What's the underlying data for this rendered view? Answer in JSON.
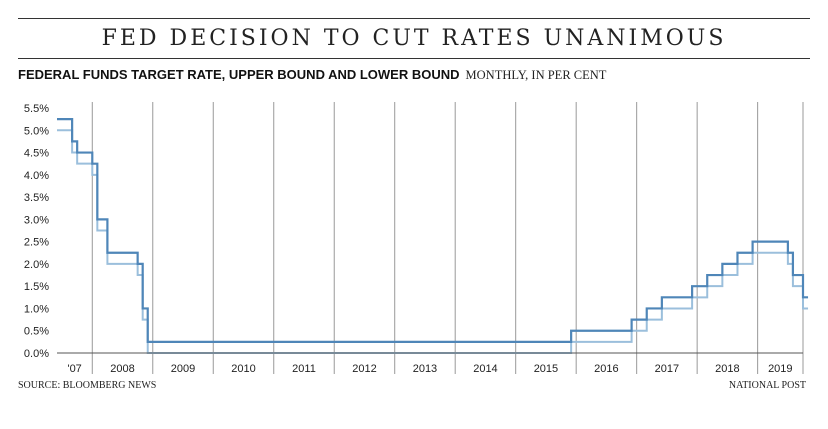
{
  "header": {
    "title": "FED DECISION TO CUT RATES UNANIMOUS",
    "subtitle": "FEDERAL FUNDS TARGET RATE, UPPER BOUND AND LOWER BOUND",
    "unit_note": "MONTHLY, IN PER CENT"
  },
  "footer": {
    "source": "SOURCE: BLOOMBERG NEWS",
    "credit": "NATIONAL POST"
  },
  "colors": {
    "upper": "#4f86b8",
    "lower": "#9bbfdc",
    "grid": "#999999",
    "axis": "#555555"
  },
  "chart_data": {
    "type": "line",
    "title": "",
    "xlabel": "",
    "ylabel": "",
    "ylim": [
      0,
      5.5
    ],
    "yticks": [
      "0.0%",
      "0.5%",
      "1.0%",
      "1.5%",
      "2.0%",
      "2.5%",
      "3.0%",
      "3.5%",
      "4.0%",
      "4.5%",
      "5.0%",
      "5.5%"
    ],
    "xlim": [
      "2007-06",
      "2019-10"
    ],
    "year_labels": [
      {
        "label": "'07",
        "year": 2007
      },
      {
        "label": "2008",
        "year": 2008
      },
      {
        "label": "2009",
        "year": 2009
      },
      {
        "label": "2010",
        "year": 2010
      },
      {
        "label": "2011",
        "year": 2011
      },
      {
        "label": "2012",
        "year": 2012
      },
      {
        "label": "2013",
        "year": 2013
      },
      {
        "label": "2014",
        "year": 2014
      },
      {
        "label": "2015",
        "year": 2015
      },
      {
        "label": "2016",
        "year": 2016
      },
      {
        "label": "2017",
        "year": 2017
      },
      {
        "label": "2018",
        "year": 2018
      },
      {
        "label": "2019",
        "year": 2019
      }
    ],
    "series": [
      {
        "key": "upper",
        "x": [
          "2007-06",
          "2007-08",
          "2007-09",
          "2007-10",
          "2007-12",
          "2008-01",
          "2008-02",
          "2008-03",
          "2008-04",
          "2008-10",
          "2008-11",
          "2008-12",
          "2015-11",
          "2015-12",
          "2016-11",
          "2016-12",
          "2017-02",
          "2017-03",
          "2017-05",
          "2017-06",
          "2017-11",
          "2017-12",
          "2018-02",
          "2018-03",
          "2018-05",
          "2018-06",
          "2018-08",
          "2018-09",
          "2018-11",
          "2018-12",
          "2019-06",
          "2019-07",
          "2019-08",
          "2019-09",
          "2019-10"
        ],
        "values": [
          5.25,
          5.25,
          4.75,
          4.5,
          4.5,
          4.25,
          3.0,
          3.0,
          2.25,
          2.0,
          1.0,
          0.25,
          0.25,
          0.5,
          0.5,
          0.75,
          0.75,
          1.0,
          1.0,
          1.25,
          1.25,
          1.5,
          1.5,
          1.75,
          1.75,
          2.0,
          2.0,
          2.25,
          2.25,
          2.5,
          2.5,
          2.25,
          1.75,
          1.75,
          1.25
        ]
      },
      {
        "key": "lower",
        "x": [
          "2007-06",
          "2007-08",
          "2007-09",
          "2007-10",
          "2007-12",
          "2008-01",
          "2008-02",
          "2008-03",
          "2008-04",
          "2008-10",
          "2008-11",
          "2008-12",
          "2015-11",
          "2015-12",
          "2016-11",
          "2016-12",
          "2017-02",
          "2017-03",
          "2017-05",
          "2017-06",
          "2017-11",
          "2017-12",
          "2018-02",
          "2018-03",
          "2018-05",
          "2018-06",
          "2018-08",
          "2018-09",
          "2018-11",
          "2018-12",
          "2019-06",
          "2019-07",
          "2019-08",
          "2019-09",
          "2019-10"
        ],
        "values": [
          5.0,
          5.0,
          4.5,
          4.25,
          4.25,
          4.0,
          2.75,
          2.75,
          2.0,
          1.75,
          0.75,
          0.0,
          0.0,
          0.25,
          0.25,
          0.5,
          0.5,
          0.75,
          0.75,
          1.0,
          1.0,
          1.25,
          1.25,
          1.5,
          1.5,
          1.75,
          1.75,
          2.0,
          2.0,
          2.25,
          2.25,
          2.0,
          1.5,
          1.5,
          1.0
        ]
      }
    ]
  }
}
